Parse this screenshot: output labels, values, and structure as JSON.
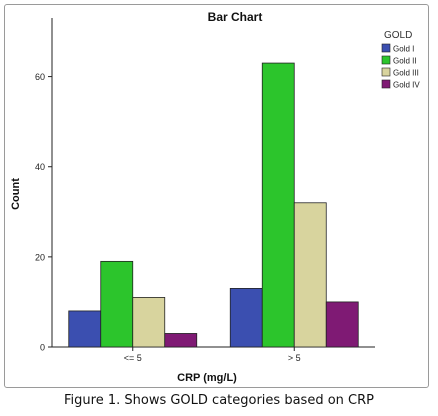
{
  "caption": "Figure 1. Shows GOLD categories based on CRP",
  "chart_data": {
    "type": "bar",
    "title": "Bar Chart",
    "xlabel": "CRP (mg/L)",
    "ylabel": "Count",
    "categories": [
      "<= 5",
      "> 5"
    ],
    "ylim": [
      0,
      73
    ],
    "yticks": [
      0,
      20,
      40,
      60
    ],
    "legend_title": "GOLD",
    "legend_position": "top-right",
    "grid": false,
    "series": [
      {
        "name": "Gold I",
        "color": "#3b4fb0",
        "values": [
          8,
          13
        ]
      },
      {
        "name": "Gold II",
        "color": "#2cc52c",
        "values": [
          19,
          63
        ]
      },
      {
        "name": "Gold III",
        "color": "#d8d49e",
        "values": [
          11,
          32
        ]
      },
      {
        "name": "Gold IV",
        "color": "#7f1a74",
        "values": [
          3,
          10
        ]
      }
    ]
  }
}
